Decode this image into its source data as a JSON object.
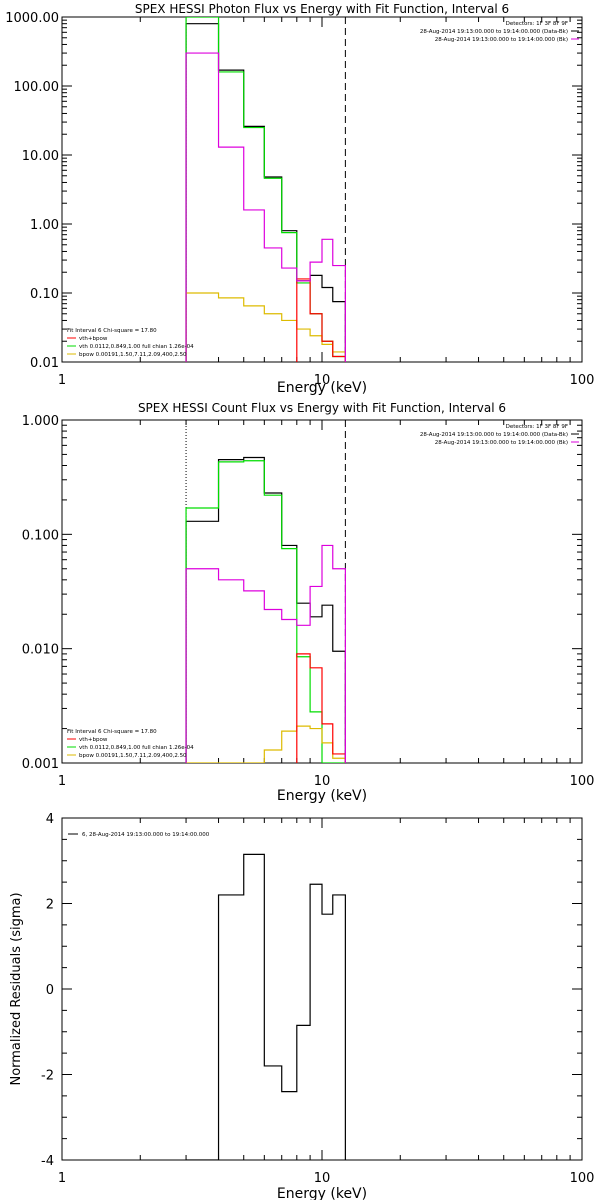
{
  "colors": {
    "sum": "#000000",
    "vth": "#00dd00",
    "bpow": "#ddbb00",
    "data": "#ff0000",
    "bkg": "#dd00dd",
    "axis": "#000000"
  },
  "chart_data": [
    {
      "type": "line",
      "title": "SPEX HESSI Photon Flux vs Energy with Fit Function, Interval 6",
      "xlabel": "Energy (keV)",
      "ylabel": "",
      "xscale": "log",
      "yscale": "log",
      "xlim": [
        1,
        100
      ],
      "ylim": [
        0.01,
        1000
      ],
      "xticks": [
        "1",
        "10",
        "100"
      ],
      "yticks": [
        "0.01",
        "0.10",
        "1.00",
        "10.00",
        "100.00",
        "1000.00"
      ],
      "legend_topright": [
        "Detectors: 1F 3F 8F 9F",
        "28-Aug-2014 19:13:00.000 to 19:14:00.000 (Data-Bk)",
        "28-Aug-2014 19:13:00.000 to 19:14:00.000 (Bk)"
      ],
      "legend_bottomleft": [
        "Fit Interval 6    Chi-square = 17.80",
        "vth+bpow",
        "vth 0.0112,0.849,1.00  full chian 1.26e-04",
        "bpow 0.00191,1.50,7.11,2.09,400,2.50"
      ],
      "vlines": [
        {
          "x": 3.0,
          "style": "dotted"
        },
        {
          "x": 12.3,
          "style": "dashed"
        }
      ],
      "series": [
        {
          "name": "vth+bpow",
          "color_key": "sum",
          "edges": [
            3.0,
            4.0,
            5.0,
            6.0,
            7.0,
            8.0,
            9.0,
            10.0,
            11.0,
            12.3
          ],
          "values": [
            800,
            170,
            26,
            4.8,
            0.8,
            0.15,
            0.18,
            0.12,
            0.075
          ]
        },
        {
          "name": "vth",
          "color_key": "vth",
          "edges": [
            3.0,
            4.0,
            5.0,
            6.0,
            7.0,
            8.0,
            9.0,
            10.0,
            11.0,
            12.3
          ],
          "values": [
            1000,
            160,
            25,
            4.6,
            0.75,
            0.14,
            0.05,
            0.02,
            0.012
          ]
        },
        {
          "name": "bpow",
          "color_key": "bpow",
          "edges": [
            3.0,
            4.0,
            5.0,
            6.0,
            7.0,
            8.0,
            9.0,
            10.0,
            11.0,
            12.3
          ],
          "values": [
            0.1,
            0.085,
            0.065,
            0.05,
            0.04,
            0.03,
            0.024,
            0.018,
            0.014
          ]
        },
        {
          "name": "Data-Bk",
          "color_key": "data",
          "edges": [
            8.0,
            9.0,
            10.0,
            11.0,
            12.3
          ],
          "values": [
            0.16,
            0.05,
            0.02,
            0.012
          ]
        },
        {
          "name": "Bk",
          "color_key": "bkg",
          "edges": [
            3.0,
            4.0,
            5.0,
            6.0,
            7.0,
            8.0,
            9.0,
            10.0,
            11.0,
            12.3
          ],
          "values": [
            300,
            13,
            1.6,
            0.45,
            0.23,
            0.15,
            0.28,
            0.6,
            0.25
          ]
        }
      ]
    },
    {
      "type": "line",
      "title": "SPEX HESSI Count Flux vs Energy with Fit Function, Interval 6",
      "xlabel": "Energy (keV)",
      "ylabel": "",
      "xscale": "log",
      "yscale": "log",
      "xlim": [
        1,
        100
      ],
      "ylim": [
        0.001,
        1
      ],
      "xticks": [
        "1",
        "10",
        "100"
      ],
      "yticks": [
        "0.001",
        "0.010",
        "0.100",
        "1.000"
      ],
      "legend_topright": [
        "Detectors: 1F 3F 8F 9F",
        "28-Aug-2014 19:13:00.000 to 19:14:00.000 (Data-Bk)",
        "28-Aug-2014 19:13:00.000 to 19:14:00.000 (Bk)"
      ],
      "legend_bottomleft": [
        "Fit Interval 6    Chi-square = 17.80",
        "vth+bpow",
        "vth 0.0112,0.849,1.00  full chian 1.26e-04",
        "bpow 0.00191,1.50,7.11,2.09,400,2.50"
      ],
      "vlines": [
        {
          "x": 3.0,
          "style": "dotted"
        },
        {
          "x": 12.3,
          "style": "dashed"
        }
      ],
      "series": [
        {
          "name": "vth+bpow",
          "color_key": "sum",
          "edges": [
            3.0,
            4.0,
            5.0,
            6.0,
            7.0,
            8.0,
            9.0,
            10.0,
            11.0,
            12.3
          ],
          "values": [
            0.13,
            0.45,
            0.47,
            0.23,
            0.08,
            0.025,
            0.019,
            0.024,
            0.0095
          ]
        },
        {
          "name": "vth",
          "color_key": "vth",
          "edges": [
            3.0,
            4.0,
            5.0,
            6.0,
            7.0,
            8.0,
            9.0,
            10.0,
            11.0,
            12.3
          ],
          "values": [
            0.17,
            0.43,
            0.44,
            0.22,
            0.075,
            0.0085,
            0.0028,
            0.001,
            0.001
          ]
        },
        {
          "name": "bpow",
          "color_key": "bpow",
          "edges": [
            3.0,
            4.0,
            5.0,
            6.0,
            7.0,
            8.0,
            9.0,
            10.0,
            11.0,
            12.3
          ],
          "values": [
            0.001,
            0.001,
            0.001,
            0.0013,
            0.0019,
            0.0021,
            0.002,
            0.0015,
            0.0011
          ]
        },
        {
          "name": "Data-Bk",
          "color_key": "data",
          "edges": [
            8.0,
            9.0,
            10.0,
            11.0,
            12.3
          ],
          "values": [
            0.009,
            0.0068,
            0.0022,
            0.0012
          ]
        },
        {
          "name": "Bk",
          "color_key": "bkg",
          "edges": [
            3.0,
            4.0,
            5.0,
            6.0,
            7.0,
            8.0,
            9.0,
            10.0,
            11.0,
            12.3
          ],
          "values": [
            0.05,
            0.04,
            0.032,
            0.022,
            0.018,
            0.016,
            0.035,
            0.08,
            0.05
          ]
        }
      ]
    },
    {
      "type": "line",
      "title": "",
      "xlabel": "Energy (keV)",
      "ylabel": "Normalized Residuals (sigma)",
      "xscale": "log",
      "yscale": "linear",
      "xlim": [
        1,
        100
      ],
      "ylim": [
        -4,
        4
      ],
      "xticks": [
        "1",
        "10",
        "100"
      ],
      "yticks": [
        "-4",
        "-2",
        "0",
        "2",
        "4"
      ],
      "legend_topleft": [
        "6, 28-Aug-2014 19:13:00.000 to 19:14:00.000"
      ],
      "series": [
        {
          "name": "6, 28-Aug-2014 19:13:00.000 to 19:14:00.000",
          "color_key": "sum",
          "edges": [
            3.0,
            4.0,
            5.0,
            6.0,
            7.0,
            8.0,
            9.0,
            10.0,
            11.0,
            12.3
          ],
          "values": [
            -4.0,
            2.2,
            3.15,
            -1.8,
            -2.4,
            -0.85,
            2.45,
            1.75,
            2.2
          ]
        }
      ]
    }
  ]
}
